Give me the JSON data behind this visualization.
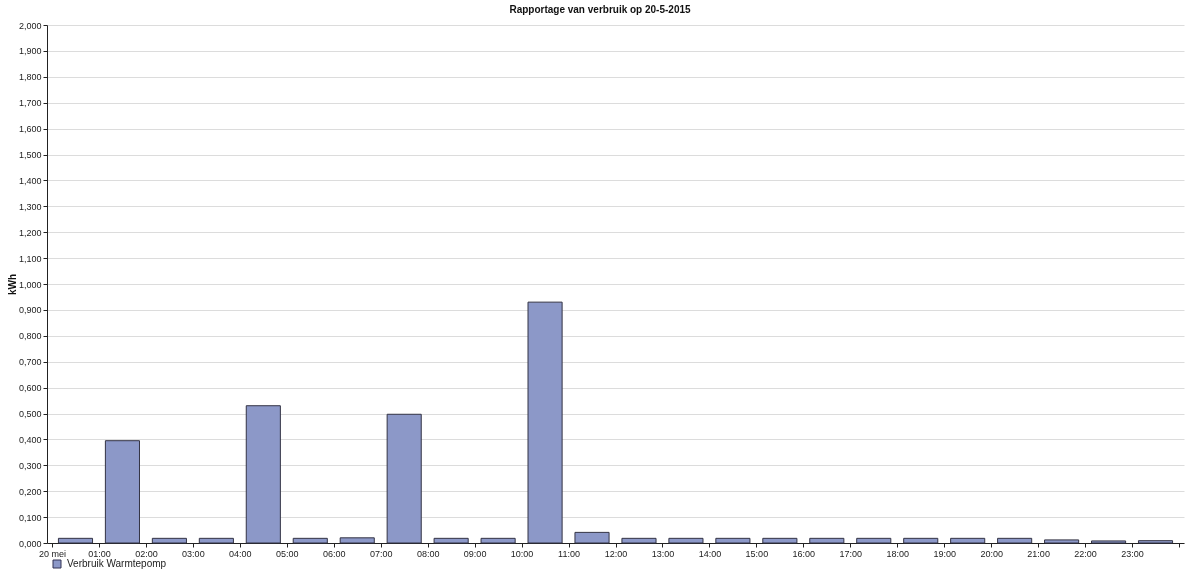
{
  "chart_data": {
    "type": "bar",
    "title": "Rapportage van verbruik op 20-5-2015",
    "ylabel": "kWh",
    "x": [
      "2015-05-20T00:30",
      "2015-05-20T01:30",
      "2015-05-20T02:30",
      "2015-05-20T03:30",
      "2015-05-20T04:30",
      "2015-05-20T05:30",
      "2015-05-20T06:30",
      "2015-05-20T07:30",
      "2015-05-20T08:30",
      "2015-05-20T09:30",
      "2015-05-20T10:30",
      "2015-05-20T11:30",
      "2015-05-20T12:30",
      "2015-05-20T13:30",
      "2015-05-20T14:30",
      "2015-05-20T15:30",
      "2015-05-20T16:30",
      "2015-05-20T17:30",
      "2015-05-20T18:30",
      "2015-05-20T19:30",
      "2015-05-20T20:30",
      "2015-05-20T21:30",
      "2015-05-20T22:30",
      "2015-05-20T23:30"
    ],
    "xlim": [
      "2015-05-20T00:00",
      "2015-05-21T00:00"
    ],
    "xticks": [
      {
        "value": "2015-05-20T00:00",
        "label": "20 mei"
      },
      {
        "value": "2015-05-20T01:00",
        "label": "01:00"
      },
      {
        "value": "2015-05-20T02:00",
        "label": "02:00"
      },
      {
        "value": "2015-05-20T03:00",
        "label": "03:00"
      },
      {
        "value": "2015-05-20T04:00",
        "label": "04:00"
      },
      {
        "value": "2015-05-20T05:00",
        "label": "05:00"
      },
      {
        "value": "2015-05-20T06:00",
        "label": "06:00"
      },
      {
        "value": "2015-05-20T07:00",
        "label": "07:00"
      },
      {
        "value": "2015-05-20T08:00",
        "label": "08:00"
      },
      {
        "value": "2015-05-20T09:00",
        "label": "09:00"
      },
      {
        "value": "2015-05-20T10:00",
        "label": "10:00"
      },
      {
        "value": "2015-05-20T11:00",
        "label": "11:00"
      },
      {
        "value": "2015-05-20T12:00",
        "label": "12:00"
      },
      {
        "value": "2015-05-20T13:00",
        "label": "13:00"
      },
      {
        "value": "2015-05-20T14:00",
        "label": "14:00"
      },
      {
        "value": "2015-05-20T15:00",
        "label": "15:00"
      },
      {
        "value": "2015-05-20T16:00",
        "label": "16:00"
      },
      {
        "value": "2015-05-20T17:00",
        "label": "17:00"
      },
      {
        "value": "2015-05-20T18:00",
        "label": "18:00"
      },
      {
        "value": "2015-05-20T19:00",
        "label": "19:00"
      },
      {
        "value": "2015-05-20T20:00",
        "label": "20:00"
      },
      {
        "value": "2015-05-20T21:00",
        "label": "21:00"
      },
      {
        "value": "2015-05-20T22:00",
        "label": "22:00"
      },
      {
        "value": "2015-05-20T23:00",
        "label": "23:00"
      },
      {
        "value": "2015-05-21T00:00",
        "label": null
      }
    ],
    "series": [
      {
        "name": "Verbruik Warmtepomp",
        "color": "#8c98c8",
        "values": [
          0.018,
          0.395,
          0.018,
          0.018,
          0.53,
          0.018,
          0.02,
          0.497,
          0.018,
          0.018,
          0.93,
          0.041,
          0.018,
          0.018,
          0.018,
          0.018,
          0.018,
          0.018,
          0.018,
          0.018,
          0.018,
          0.012,
          0.008,
          0.009
        ]
      }
    ],
    "ylim": [
      0,
      2
    ],
    "yticks": [
      {
        "value": 0,
        "label": "0,000"
      },
      {
        "value": 0.1,
        "label": "0,100"
      },
      {
        "value": 0.2,
        "label": "0,200"
      },
      {
        "value": 0.3,
        "label": "0,300"
      },
      {
        "value": 0.4,
        "label": "0,400"
      },
      {
        "value": 0.5,
        "label": "0,500"
      },
      {
        "value": 0.6,
        "label": "0,600"
      },
      {
        "value": 0.7,
        "label": "0,700"
      },
      {
        "value": 0.8,
        "label": "0,800"
      },
      {
        "value": 0.9,
        "label": "0,900"
      },
      {
        "value": 1,
        "label": "1,000"
      },
      {
        "value": 1.1,
        "label": "1,100"
      },
      {
        "value": 1.2,
        "label": "1,200"
      },
      {
        "value": 1.3,
        "label": "1,300"
      },
      {
        "value": 1.4,
        "label": "1,400"
      },
      {
        "value": 1.5,
        "label": "1,500"
      },
      {
        "value": 1.6,
        "label": "1,600"
      },
      {
        "value": 1.7,
        "label": "1,700"
      },
      {
        "value": 1.8,
        "label": "1,800"
      },
      {
        "value": 1.9,
        "label": "1,900"
      },
      {
        "value": 2,
        "label": "2,000"
      }
    ],
    "grid": "y",
    "legend": "bottom left"
  }
}
